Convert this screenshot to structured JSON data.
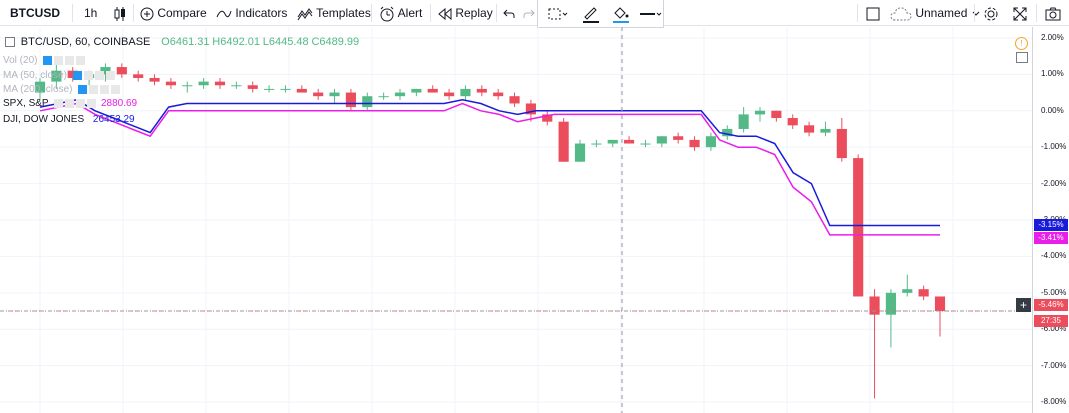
{
  "toolbar": {
    "symbol": "BTCUSD",
    "interval": "1h",
    "compare": "Compare",
    "indicators": "Indicators",
    "templates": "Templates",
    "alert": "Alert",
    "replay": "Replay",
    "layout_name": "Unnamed"
  },
  "legend": {
    "title": "BTC/USD, 60, COINBASE",
    "open": "O6461.31",
    "high": "H6492.01",
    "low": "L6445.48",
    "close": "C6489.99",
    "vol": "Vol (20)",
    "ma50": "MA (50, close)",
    "ma200": "MA (200, close)",
    "spx_name": "SPX, S&P",
    "spx_value": "2880.69",
    "dji_name": "DJI, DOW JONES",
    "dji_value": "26453.29"
  },
  "price_axis": {
    "labels": [
      "2.00%",
      "1.00%",
      "0.00%",
      "-1.00%",
      "-2.00%",
      "-3.00%",
      "-4.00%",
      "-5.00%",
      "-6.00%",
      "-7.00%",
      "-8.00%"
    ],
    "dji_tag": "-3.15%",
    "spx_tag": "-3.41%",
    "btc_tag": "-5.46%",
    "countdown": "27:35"
  },
  "colors": {
    "up": "#53b987",
    "down": "#eb4d5c",
    "dji": "#1a1adc",
    "spx": "#e91ee9",
    "crosshair": "#9598a1"
  },
  "chart_data": {
    "type": "candlestick",
    "unit": "percent change",
    "ylim": [
      -8.3,
      2.3
    ],
    "candles": [
      [
        0.5,
        0.9,
        0.3,
        0.8
      ],
      [
        0.8,
        1.3,
        0.6,
        1.1
      ],
      [
        1.1,
        1.2,
        0.8,
        0.9
      ],
      [
        0.9,
        1.1,
        0.7,
        1.0
      ],
      [
        1.0,
        1.3,
        0.8,
        1.2
      ],
      [
        1.2,
        1.3,
        0.9,
        1.0
      ],
      [
        1.0,
        1.1,
        0.8,
        0.9
      ],
      [
        0.9,
        1.0,
        0.7,
        0.8
      ],
      [
        0.8,
        0.9,
        0.6,
        0.7
      ],
      [
        0.7,
        0.8,
        0.5,
        0.7
      ],
      [
        0.7,
        0.9,
        0.6,
        0.8
      ],
      [
        0.8,
        0.9,
        0.6,
        0.7
      ],
      [
        0.7,
        0.8,
        0.6,
        0.7
      ],
      [
        0.7,
        0.8,
        0.5,
        0.6
      ],
      [
        0.6,
        0.7,
        0.5,
        0.6
      ],
      [
        0.6,
        0.7,
        0.5,
        0.6
      ],
      [
        0.6,
        0.7,
        0.5,
        0.5
      ],
      [
        0.5,
        0.6,
        0.3,
        0.4
      ],
      [
        0.4,
        0.6,
        0.2,
        0.5
      ],
      [
        0.5,
        0.6,
        0.0,
        0.1
      ],
      [
        0.1,
        0.5,
        0.0,
        0.4
      ],
      [
        0.4,
        0.5,
        0.3,
        0.4
      ],
      [
        0.4,
        0.6,
        0.3,
        0.5
      ],
      [
        0.5,
        0.6,
        0.4,
        0.6
      ],
      [
        0.6,
        0.7,
        0.5,
        0.5
      ],
      [
        0.5,
        0.6,
        0.3,
        0.4
      ],
      [
        0.4,
        0.7,
        0.3,
        0.6
      ],
      [
        0.6,
        0.7,
        0.4,
        0.5
      ],
      [
        0.5,
        0.6,
        0.3,
        0.4
      ],
      [
        0.4,
        0.5,
        0.1,
        0.2
      ],
      [
        0.2,
        0.3,
        -0.3,
        -0.1
      ],
      [
        -0.1,
        0.0,
        -0.4,
        -0.3
      ],
      [
        -0.3,
        -0.2,
        -1.4,
        -1.4
      ],
      [
        -1.4,
        -0.8,
        -1.4,
        -0.9
      ],
      [
        -0.9,
        -0.8,
        -1.0,
        -0.9
      ],
      [
        -0.9,
        -0.8,
        -1.0,
        -0.8
      ],
      [
        -0.8,
        -0.7,
        -0.9,
        -0.9
      ],
      [
        -0.9,
        -0.8,
        -1.0,
        -0.9
      ],
      [
        -0.9,
        -0.7,
        -1.0,
        -0.7
      ],
      [
        -0.7,
        -0.6,
        -0.9,
        -0.8
      ],
      [
        -0.8,
        -0.7,
        -1.1,
        -1.0
      ],
      [
        -1.0,
        -0.6,
        -1.1,
        -0.7
      ],
      [
        -0.7,
        -0.4,
        -0.8,
        -0.5
      ],
      [
        -0.5,
        0.1,
        -0.6,
        -0.1
      ],
      [
        -0.1,
        0.1,
        -0.3,
        0.0
      ],
      [
        0.0,
        0.0,
        -0.3,
        -0.2
      ],
      [
        -0.2,
        -0.1,
        -0.5,
        -0.4
      ],
      [
        -0.4,
        -0.3,
        -0.7,
        -0.6
      ],
      [
        -0.6,
        -0.3,
        -0.7,
        -0.5
      ],
      [
        -0.5,
        -0.2,
        -1.4,
        -1.3
      ],
      [
        -1.3,
        -1.2,
        -5.1,
        -5.1
      ],
      [
        -5.1,
        -4.9,
        -7.9,
        -5.6
      ],
      [
        -5.6,
        -4.9,
        -6.5,
        -5.0
      ],
      [
        -5.0,
        -4.5,
        -5.1,
        -4.9
      ],
      [
        -4.9,
        -4.8,
        -5.2,
        -5.1
      ],
      [
        -5.1,
        -5.1,
        -6.2,
        -5.5
      ]
    ],
    "series": [
      {
        "name": "DJI",
        "values": [
          0.1,
          0.2,
          0.3,
          0.0,
          -0.2,
          -0.4,
          -0.6,
          0.1,
          0.2,
          0.2,
          0.2,
          0.2,
          0.2,
          0.2,
          0.2,
          0.2,
          0.2,
          0.2,
          0.2,
          0.2,
          0.2,
          0.2,
          0.2,
          0.3,
          0.2,
          0.0,
          -0.1,
          0.0,
          0.0,
          0.0,
          0.0,
          0.0,
          0.0,
          0.0,
          0.0,
          0.0,
          0.0,
          -0.6,
          -0.7,
          -0.7,
          -0.9,
          -1.7,
          -2.0,
          -3.15,
          -3.15,
          -3.15,
          -3.15,
          -3.15,
          -3.15,
          -3.15
        ]
      },
      {
        "name": "SPX",
        "values": [
          0.0,
          0.1,
          0.2,
          -0.1,
          -0.3,
          -0.5,
          -0.7,
          0.0,
          0.0,
          0.0,
          0.0,
          0.0,
          0.0,
          0.0,
          0.0,
          0.0,
          0.0,
          0.0,
          0.0,
          0.0,
          0.0,
          0.0,
          0.0,
          0.2,
          0.0,
          -0.1,
          -0.3,
          -0.2,
          -0.1,
          -0.1,
          -0.1,
          -0.1,
          -0.1,
          -0.1,
          -0.1,
          -0.1,
          -0.1,
          -0.8,
          -1.0,
          -1.0,
          -1.2,
          -2.1,
          -2.5,
          -3.41,
          -3.41,
          -3.41,
          -3.41,
          -3.41,
          -3.41,
          -3.41
        ]
      }
    ]
  }
}
